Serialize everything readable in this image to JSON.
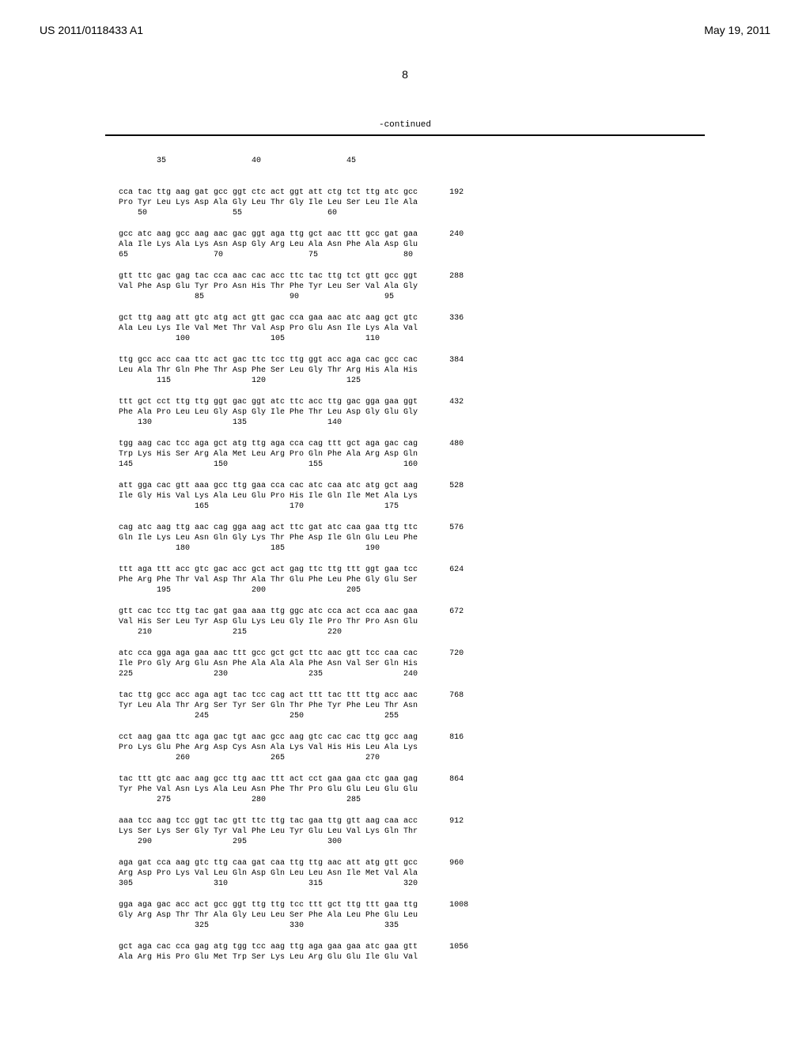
{
  "header": {
    "pub_number": "US 2011/0118433 A1",
    "pub_date": "May 19, 2011"
  },
  "page_number": "8",
  "continued_label": "-continued",
  "top_markers": "        35                  40                  45",
  "blocks": [
    {
      "nuc": "cca tac ttg aag gat gcc ggt ctc act ggt att ctg tct ttg atc gcc",
      "aa": "Pro Tyr Leu Lys Asp Ala Gly Leu Thr Gly Ile Leu Ser Leu Ile Ala",
      "pos": "    50                  55                  60",
      "end": "192"
    },
    {
      "nuc": "gcc atc aag gcc aag aac gac ggt aga ttg gct aac ttt gcc gat gaa",
      "aa": "Ala Ile Lys Ala Lys Asn Asp Gly Arg Leu Ala Asn Phe Ala Asp Glu",
      "pos": "65                  70                  75                  80",
      "end": "240"
    },
    {
      "nuc": "gtt ttc gac gag tac cca aac cac acc ttc tac ttg tct gtt gcc ggt",
      "aa": "Val Phe Asp Glu Tyr Pro Asn His Thr Phe Tyr Leu Ser Val Ala Gly",
      "pos": "                85                  90                  95",
      "end": "288"
    },
    {
      "nuc": "gct ttg aag att gtc atg act gtt gac cca gaa aac atc aag gct gtc",
      "aa": "Ala Leu Lys Ile Val Met Thr Val Asp Pro Glu Asn Ile Lys Ala Val",
      "pos": "            100                 105                 110",
      "end": "336"
    },
    {
      "nuc": "ttg gcc acc caa ttc act gac ttc tcc ttg ggt acc aga cac gcc cac",
      "aa": "Leu Ala Thr Gln Phe Thr Asp Phe Ser Leu Gly Thr Arg His Ala His",
      "pos": "        115                 120                 125",
      "end": "384"
    },
    {
      "nuc": "ttt gct cct ttg ttg ggt gac ggt atc ttc acc ttg gac gga gaa ggt",
      "aa": "Phe Ala Pro Leu Leu Gly Asp Gly Ile Phe Thr Leu Asp Gly Glu Gly",
      "pos": "    130                 135                 140",
      "end": "432"
    },
    {
      "nuc": "tgg aag cac tcc aga gct atg ttg aga cca cag ttt gct aga gac cag",
      "aa": "Trp Lys His Ser Arg Ala Met Leu Arg Pro Gln Phe Ala Arg Asp Gln",
      "pos": "145                 150                 155                 160",
      "end": "480"
    },
    {
      "nuc": "att gga cac gtt aaa gcc ttg gaa cca cac atc caa atc atg gct aag",
      "aa": "Ile Gly His Val Lys Ala Leu Glu Pro His Ile Gln Ile Met Ala Lys",
      "pos": "                165                 170                 175",
      "end": "528"
    },
    {
      "nuc": "cag atc aag ttg aac cag gga aag act ttc gat atc caa gaa ttg ttc",
      "aa": "Gln Ile Lys Leu Asn Gln Gly Lys Thr Phe Asp Ile Gln Glu Leu Phe",
      "pos": "            180                 185                 190",
      "end": "576"
    },
    {
      "nuc": "ttt aga ttt acc gtc gac acc gct act gag ttc ttg ttt ggt gaa tcc",
      "aa": "Phe Arg Phe Thr Val Asp Thr Ala Thr Glu Phe Leu Phe Gly Glu Ser",
      "pos": "        195                 200                 205",
      "end": "624"
    },
    {
      "nuc": "gtt cac tcc ttg tac gat gaa aaa ttg ggc atc cca act cca aac gaa",
      "aa": "Val His Ser Leu Tyr Asp Glu Lys Leu Gly Ile Pro Thr Pro Asn Glu",
      "pos": "    210                 215                 220",
      "end": "672"
    },
    {
      "nuc": "atc cca gga aga gaa aac ttt gcc gct gct ttc aac gtt tcc caa cac",
      "aa": "Ile Pro Gly Arg Glu Asn Phe Ala Ala Ala Phe Asn Val Ser Gln His",
      "pos": "225                 230                 235                 240",
      "end": "720"
    },
    {
      "nuc": "tac ttg gcc acc aga agt tac tcc cag act ttt tac ttt ttg acc aac",
      "aa": "Tyr Leu Ala Thr Arg Ser Tyr Ser Gln Thr Phe Tyr Phe Leu Thr Asn",
      "pos": "                245                 250                 255",
      "end": "768"
    },
    {
      "nuc": "cct aag gaa ttc aga gac tgt aac gcc aag gtc cac cac ttg gcc aag",
      "aa": "Pro Lys Glu Phe Arg Asp Cys Asn Ala Lys Val His His Leu Ala Lys",
      "pos": "            260                 265                 270",
      "end": "816"
    },
    {
      "nuc": "tac ttt gtc aac aag gcc ttg aac ttt act cct gaa gaa ctc gaa gag",
      "aa": "Tyr Phe Val Asn Lys Ala Leu Asn Phe Thr Pro Glu Glu Leu Glu Glu",
      "pos": "        275                 280                 285",
      "end": "864"
    },
    {
      "nuc": "aaa tcc aag tcc ggt tac gtt ttc ttg tac gaa ttg gtt aag caa acc",
      "aa": "Lys Ser Lys Ser Gly Tyr Val Phe Leu Tyr Glu Leu Val Lys Gln Thr",
      "pos": "    290                 295                 300",
      "end": "912"
    },
    {
      "nuc": "aga gat cca aag gtc ttg caa gat caa ttg ttg aac att atg gtt gcc",
      "aa": "Arg Asp Pro Lys Val Leu Gln Asp Gln Leu Leu Asn Ile Met Val Ala",
      "pos": "305                 310                 315                 320",
      "end": "960"
    },
    {
      "nuc": "gga aga gac acc act gcc ggt ttg ttg tcc ttt gct ttg ttt gaa ttg",
      "aa": "Gly Arg Asp Thr Thr Ala Gly Leu Leu Ser Phe Ala Leu Phe Glu Leu",
      "pos": "                325                 330                 335",
      "end": "1008"
    },
    {
      "nuc": "gct aga cac cca gag atg tgg tcc aag ttg aga gaa gaa atc gaa gtt",
      "aa": "Ala Arg His Pro Glu Met Trp Ser Lys Leu Arg Glu Glu Ile Glu Val",
      "pos": "",
      "end": "1056"
    }
  ],
  "typography": {
    "font_family_mono": "Courier New",
    "font_family_sans": "Arial",
    "header_fontsize": 14,
    "sequence_fontsize": 10,
    "background_color": "#ffffff",
    "text_color": "#000000"
  }
}
